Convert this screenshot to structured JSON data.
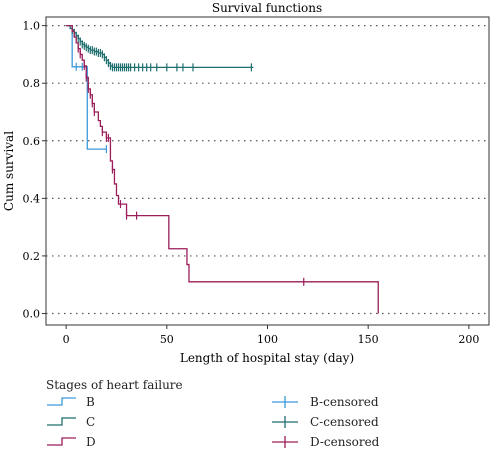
{
  "chart_data": {
    "type": "line",
    "title": "Survival functions",
    "xlabel": "Length of hospital stay (day)",
    "ylabel": "Cum survival",
    "xlim": [
      -10,
      210
    ],
    "ylim": [
      -0.04,
      1.03
    ],
    "x_ticks": [
      "0",
      "50",
      "100",
      "150",
      "200"
    ],
    "y_ticks": [
      "0.0",
      "0.2",
      "0.4",
      "0.6",
      "0.8",
      "1.0"
    ],
    "grid": "horizontal dotted",
    "legend_title": "Stages of heart failure",
    "legend_placement": "bottom",
    "series": [
      {
        "name": "B",
        "color": "#3a9ad9",
        "steps": [
          [
            0,
            1.0
          ],
          [
            3,
            0.857
          ],
          [
            10,
            0.857
          ],
          [
            10.5,
            0.571
          ],
          [
            20,
            0.571
          ]
        ],
        "censored": [
          [
            5,
            0.857
          ],
          [
            8,
            0.857
          ],
          [
            20,
            0.571
          ]
        ]
      },
      {
        "name": "C",
        "color": "#1f6e6e",
        "steps": [
          [
            0,
            1.0
          ],
          [
            2,
            0.99
          ],
          [
            3,
            0.985
          ],
          [
            4,
            0.975
          ],
          [
            5,
            0.965
          ],
          [
            6,
            0.955
          ],
          [
            7,
            0.945
          ],
          [
            8,
            0.935
          ],
          [
            9,
            0.93
          ],
          [
            10,
            0.925
          ],
          [
            11,
            0.92
          ],
          [
            12,
            0.915
          ],
          [
            14,
            0.91
          ],
          [
            16,
            0.905
          ],
          [
            18,
            0.9
          ],
          [
            19,
            0.89
          ],
          [
            20,
            0.88
          ],
          [
            21,
            0.87
          ],
          [
            22,
            0.86
          ],
          [
            23,
            0.855
          ],
          [
            93,
            0.855
          ]
        ],
        "censored": [
          [
            3,
            0.985
          ],
          [
            4,
            0.975
          ],
          [
            5,
            0.965
          ],
          [
            6,
            0.955
          ],
          [
            7,
            0.945
          ],
          [
            8,
            0.935
          ],
          [
            9,
            0.93
          ],
          [
            10,
            0.925
          ],
          [
            11,
            0.92
          ],
          [
            12,
            0.915
          ],
          [
            13,
            0.915
          ],
          [
            14,
            0.91
          ],
          [
            15,
            0.91
          ],
          [
            16,
            0.905
          ],
          [
            17,
            0.905
          ],
          [
            18,
            0.9
          ],
          [
            19,
            0.89
          ],
          [
            20,
            0.88
          ],
          [
            21,
            0.87
          ],
          [
            22,
            0.86
          ],
          [
            23,
            0.855
          ],
          [
            24,
            0.855
          ],
          [
            25,
            0.855
          ],
          [
            26,
            0.855
          ],
          [
            27,
            0.855
          ],
          [
            28,
            0.855
          ],
          [
            29,
            0.855
          ],
          [
            30,
            0.855
          ],
          [
            31,
            0.855
          ],
          [
            32,
            0.855
          ],
          [
            34,
            0.855
          ],
          [
            36,
            0.855
          ],
          [
            38,
            0.855
          ],
          [
            40,
            0.855
          ],
          [
            42,
            0.855
          ],
          [
            45,
            0.855
          ],
          [
            50,
            0.855
          ],
          [
            55,
            0.855
          ],
          [
            58,
            0.855
          ],
          [
            63,
            0.855
          ],
          [
            92,
            0.855
          ]
        ]
      },
      {
        "name": "D",
        "color": "#9b1d5a",
        "steps": [
          [
            0,
            1.0
          ],
          [
            3,
            0.98
          ],
          [
            4,
            0.96
          ],
          [
            5,
            0.94
          ],
          [
            6,
            0.92
          ],
          [
            7,
            0.9
          ],
          [
            8,
            0.88
          ],
          [
            9,
            0.86
          ],
          [
            10,
            0.82
          ],
          [
            11,
            0.78
          ],
          [
            12,
            0.76
          ],
          [
            13,
            0.73
          ],
          [
            14,
            0.7
          ],
          [
            16,
            0.67
          ],
          [
            17,
            0.65
          ],
          [
            18,
            0.63
          ],
          [
            20,
            0.61
          ],
          [
            22,
            0.53
          ],
          [
            23,
            0.5
          ],
          [
            24,
            0.45
          ],
          [
            25,
            0.41
          ],
          [
            26,
            0.38
          ],
          [
            28,
            0.38
          ],
          [
            30,
            0.34
          ],
          [
            50,
            0.34
          ],
          [
            51,
            0.225
          ],
          [
            59,
            0.225
          ],
          [
            60,
            0.17
          ],
          [
            61,
            0.11
          ],
          [
            155,
            0.11
          ],
          [
            155,
            0.0
          ]
        ],
        "censored": [
          [
            6,
            0.92
          ],
          [
            7,
            0.9
          ],
          [
            9,
            0.86
          ],
          [
            10,
            0.82
          ],
          [
            11,
            0.78
          ],
          [
            12,
            0.76
          ],
          [
            13,
            0.73
          ],
          [
            14,
            0.7
          ],
          [
            18,
            0.63
          ],
          [
            20,
            0.61
          ],
          [
            21,
            0.61
          ],
          [
            23,
            0.5
          ],
          [
            27,
            0.38
          ],
          [
            30,
            0.34
          ],
          [
            35,
            0.34
          ],
          [
            118,
            0.11
          ]
        ]
      }
    ],
    "legend_entries": [
      {
        "label": "B",
        "kind": "line",
        "series": 0
      },
      {
        "label": "C",
        "kind": "line",
        "series": 1
      },
      {
        "label": "D",
        "kind": "line",
        "series": 2
      },
      {
        "label": "B-censored",
        "kind": "censored",
        "series": 0
      },
      {
        "label": "C-censored",
        "kind": "censored",
        "series": 1
      },
      {
        "label": "D-censored",
        "kind": "censored",
        "series": 2
      }
    ]
  }
}
